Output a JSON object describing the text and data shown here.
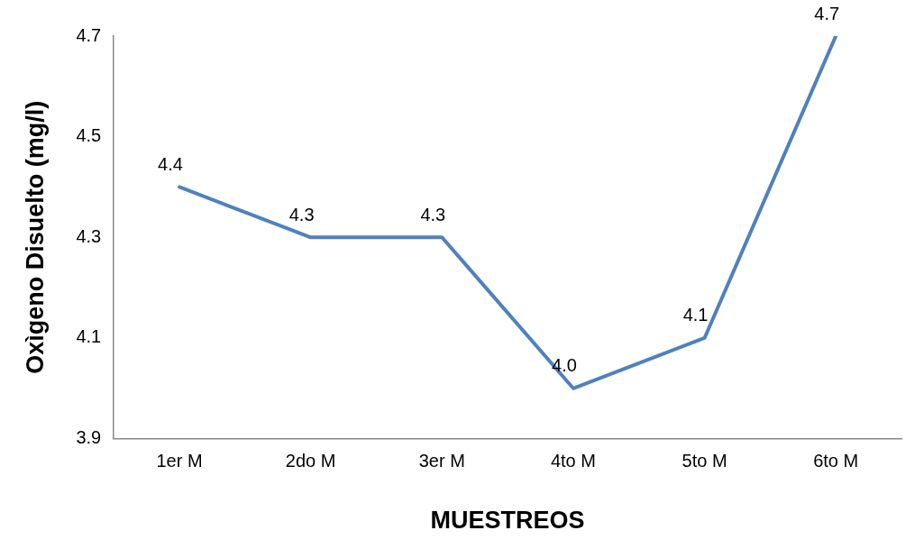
{
  "chart_data": {
    "type": "line",
    "xlabel": "MUESTREOS",
    "ylabel": "Oxìgeno Disuelto (mg/l)",
    "categories": [
      "1er M",
      "2do M",
      "3er M",
      "4to M",
      "5to M",
      "6to M"
    ],
    "series": [
      {
        "color": "#4f81bd",
        "values": [
          4.4,
          4.3,
          4.3,
          4.0,
          4.1,
          4.7
        ],
        "value_labels": [
          "4.4",
          "4.3",
          "4.3",
          "4.0",
          "4.1",
          "4.7"
        ]
      }
    ],
    "ylim": [
      3.9,
      4.7
    ],
    "yticks": [
      3.9,
      4.1,
      4.3,
      4.5,
      4.7
    ],
    "grid": false,
    "legend": false,
    "marker": "none",
    "line_style": "solid"
  }
}
